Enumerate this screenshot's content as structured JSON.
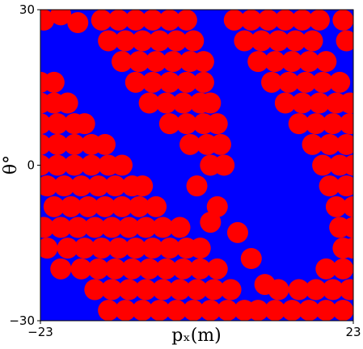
{
  "chart_data": {
    "type": "scatter",
    "xlabel": "pₓ(m)",
    "ylabel": "θ°",
    "xlim": [
      -23,
      23
    ],
    "ylim": [
      -30,
      30
    ],
    "xticks": [
      {
        "value": -23,
        "label": "−23"
      },
      23
    ],
    "yticks": [
      {
        "value": -30,
        "label": "−30"
      },
      0,
      30
    ],
    "background_color": "#0000ff",
    "series": [
      {
        "color": "#ff0000",
        "x": [
          -23,
          -21,
          -23,
          -21,
          -19,
          -23,
          -20.5,
          -18,
          -16.5,
          -23,
          -20.5,
          -18,
          -15.5,
          -13.5,
          -23,
          -20.5,
          -18,
          -15.5,
          -13,
          -11,
          -22,
          -19.5,
          -17,
          -14.5,
          -12,
          -9.5,
          -8,
          -21,
          -18.5,
          -16,
          -13.5,
          -11,
          -8.5,
          -6,
          -22.5,
          -20,
          -17.5,
          -15,
          -12.5,
          -10,
          -7.5,
          -5,
          -2.5,
          -22,
          -19,
          -16.5,
          -14,
          -11.5,
          -9,
          -6.5,
          -4,
          -1.5,
          0.5,
          -20,
          -17,
          -14.5,
          -12,
          -9.5,
          -7,
          -4.5,
          -2,
          0.5,
          3,
          -15,
          -12.5,
          -10,
          -7.5,
          -5,
          -2.5,
          0,
          2.5,
          5,
          -13,
          -10.5,
          -8,
          -5.5,
          -3,
          -0.5,
          2,
          4.5,
          7,
          9,
          -14,
          -11.5,
          -9,
          -6.5,
          -4,
          -1.5,
          -13,
          -10.5,
          -8,
          -5.5,
          -3,
          -0.5,
          -11,
          -8.5,
          -6,
          -3.5,
          -1,
          1,
          -9,
          -6.5,
          -4,
          -1.5,
          1,
          -7,
          -4.5,
          -2,
          0.5,
          2,
          -4,
          -1.5,
          1,
          3,
          -1,
          1.5,
          3.5,
          2,
          4,
          0,
          3,
          2,
          6,
          8,
          10,
          5.5,
          8,
          10.5,
          13,
          15.5,
          18,
          21.5,
          7,
          9.5,
          12,
          14.5,
          17,
          22,
          9,
          11.5,
          14,
          16.5,
          19,
          11,
          13.5,
          16,
          18.5,
          21,
          13,
          15.5,
          18,
          20.5,
          22.5,
          15,
          17.5,
          20,
          22.5,
          17,
          19.5,
          22,
          18.5,
          21,
          23,
          19.5,
          22,
          20.5,
          23,
          21,
          23,
          21.5,
          23,
          19,
          21.5,
          12,
          15,
          17.5,
          20,
          22.5,
          11.5,
          14,
          16.5,
          19,
          21.5,
          -22.5,
          -20,
          -17.5
        ],
        "y": [
          16,
          16,
          12,
          12,
          12,
          8,
          8,
          8,
          8,
          4,
          4,
          4,
          4,
          4,
          0,
          0,
          0,
          0,
          0,
          0,
          -4,
          -4,
          -4,
          -4,
          -4,
          -4,
          -4,
          -8,
          -8,
          -8,
          -8,
          -8,
          -8,
          -8,
          -12,
          -12,
          -12,
          -12,
          -12,
          -12,
          -12,
          -12,
          -12,
          -16,
          -16,
          -16,
          -16,
          -16,
          -16,
          -16,
          -16,
          -16,
          -16,
          -20,
          -20,
          -20,
          -20,
          -20,
          -20,
          -20,
          -20,
          -20,
          -20,
          -24,
          -24,
          -24,
          -24,
          -24,
          -24,
          -24,
          -24,
          -24,
          -28,
          -28,
          -28,
          -28,
          -28,
          -28,
          -28,
          -28,
          -28,
          -28,
          28,
          28,
          28,
          28,
          28,
          28,
          24,
          24,
          24,
          24,
          24,
          24,
          20,
          20,
          20,
          20,
          20,
          20,
          16,
          16,
          16,
          16,
          16,
          12,
          12,
          12,
          12,
          12,
          8,
          8,
          8,
          8,
          4,
          4,
          4,
          0,
          0,
          -4,
          -8,
          -11,
          -13,
          -18,
          -23,
          28,
          28,
          28,
          28,
          28,
          28,
          28,
          24,
          24,
          24,
          24,
          24,
          24,
          20,
          20,
          20,
          20,
          20,
          16,
          16,
          16,
          16,
          16,
          12,
          12,
          12,
          12,
          12,
          8,
          8,
          8,
          8,
          4,
          4,
          4,
          0,
          0,
          0,
          -4,
          -4,
          -8,
          -8,
          -12,
          -12,
          -16,
          -16,
          -20,
          -20,
          -24,
          -24,
          -24,
          -24,
          -24,
          -28,
          -28,
          -28,
          -28,
          -28,
          28,
          29,
          27.5
        ]
      }
    ]
  }
}
